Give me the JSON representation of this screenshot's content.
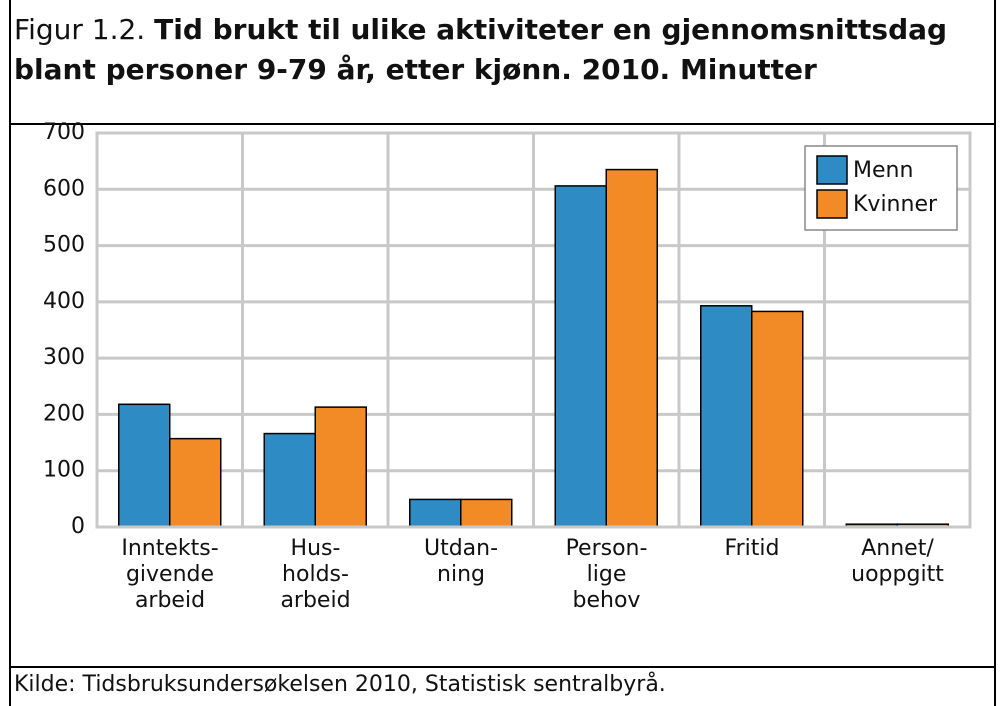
{
  "chart_data": {
    "type": "bar",
    "figure_label": "Figur 1.2.",
    "title": "Tid brukt til ulike aktiviteter en gjennomsnittsdag blant personer 9-79 år, etter kjønn. 2010. Minutter",
    "categories": [
      "Inntekts-\ngivende\narbeid",
      "Hus-\nholds-\narbeid",
      "Utdan-\nning",
      "Person-\nlige\nbehov",
      "Fritid",
      "Annet/\nuoppgitt"
    ],
    "series": [
      {
        "name": "Menn",
        "color": "#2e8bc4",
        "values": [
          218,
          166,
          49,
          606,
          393,
          5
        ]
      },
      {
        "name": "Kvinner",
        "color": "#f28a26",
        "values": [
          157,
          213,
          49,
          635,
          383,
          5
        ]
      }
    ],
    "ylim": [
      0,
      700
    ],
    "yticks": [
      0,
      100,
      200,
      300,
      400,
      500,
      600,
      700
    ],
    "grid": true,
    "legend": "top-right",
    "source": "Kilde: Tidsbruksundersøkelsen 2010, Statistisk sentralbyrå."
  }
}
